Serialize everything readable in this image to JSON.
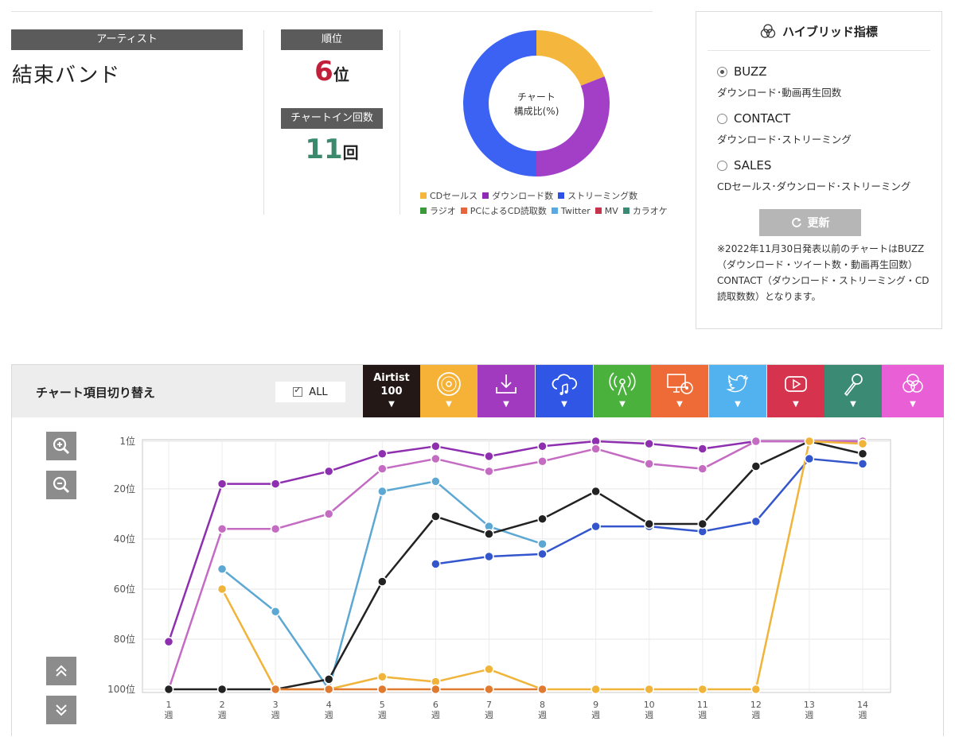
{
  "artist": {
    "label": "アーティスト",
    "name": "結束バンド"
  },
  "rank": {
    "label": "順位",
    "value": "6",
    "unit": "位",
    "value_color": "#c21f3a"
  },
  "chart_in": {
    "label": "チャートイン回数",
    "value": "11",
    "unit": "回",
    "value_color": "#3b8a6e"
  },
  "donut": {
    "center_line1": "チャート",
    "center_line2": "構成比(%)",
    "slices": [
      {
        "name": "CDセールス",
        "value": 19,
        "color": "#f4b63d"
      },
      {
        "name": "ダウンロード数",
        "value": 31,
        "color": "#a33fc6"
      },
      {
        "name": "ストリーミング数",
        "value": 50,
        "color": "#3b62f2"
      }
    ],
    "legend_row1": [
      {
        "name": "CDセールス",
        "color": "#f4b63d"
      },
      {
        "name": "ダウンロード数",
        "color": "#8e2ab5"
      },
      {
        "name": "ストリーミング数",
        "color": "#2e50e6"
      }
    ],
    "legend_row2": [
      {
        "name": "ラジオ",
        "color": "#3a9a3a"
      },
      {
        "name": "PCによるCD読取数",
        "color": "#e8643a"
      },
      {
        "name": "Twitter",
        "color": "#57a8e4"
      },
      {
        "name": "MV",
        "color": "#c8334c"
      },
      {
        "name": "カラオケ",
        "color": "#3a8a74"
      }
    ]
  },
  "hybrid": {
    "title": "ハイブリッド指標",
    "options": [
      {
        "label": "BUZZ",
        "desc": "ダウンロード･動画再生回数",
        "selected": true
      },
      {
        "label": "CONTACT",
        "desc": "ダウンロード･ストリーミング",
        "selected": false
      },
      {
        "label": "SALES",
        "desc": "CDセールス･ダウンロード･ストリーミング",
        "selected": false
      }
    ],
    "update_label": "更新",
    "note": "※2022年11月30日発表以前のチャートはBUZZ（ダウンロード・ツイート数・動画再生回数）CONTACT（ダウンロード・ストリーミング・CD読取数数）となります。"
  },
  "toggle": {
    "title": "チャート項目切り替え",
    "all_label": "ALL",
    "buttons": [
      {
        "name": "airtist-100",
        "label1": "Airtist",
        "label2": "100",
        "color": "#231815",
        "icon": "none"
      },
      {
        "name": "cd",
        "color": "#f5b236",
        "icon": "disc-icon"
      },
      {
        "name": "download",
        "color": "#a23ac0",
        "icon": "download-icon"
      },
      {
        "name": "streaming",
        "color": "#2f56e4",
        "icon": "cloud-music-icon"
      },
      {
        "name": "radio",
        "color": "#4ab23c",
        "icon": "radio-tower-icon"
      },
      {
        "name": "pc-cd",
        "color": "#ee6a36",
        "icon": "monitor-disc-icon"
      },
      {
        "name": "twitter",
        "color": "#52b2f0",
        "icon": "twitter-bird-icon"
      },
      {
        "name": "mv",
        "color": "#d6334e",
        "icon": "play-icon"
      },
      {
        "name": "karaoke",
        "color": "#3a8a74",
        "icon": "microphone-icon"
      },
      {
        "name": "hybrid",
        "color": "#e95fd6",
        "icon": "venn-icon"
      }
    ]
  },
  "chart_data": {
    "type": "line",
    "x": [
      "1",
      "2",
      "3",
      "4",
      "5",
      "6",
      "7",
      "8",
      "9",
      "10",
      "11",
      "12",
      "13",
      "14"
    ],
    "x_suffix": "週",
    "y_ticks": [
      "1位",
      "20位",
      "40位",
      "60位",
      "80位",
      "100位"
    ],
    "y_tick_values": [
      1,
      20,
      40,
      60,
      80,
      100
    ],
    "ylim": [
      1,
      100
    ],
    "y_reversed": true,
    "grid": true,
    "series": [
      {
        "color": "#8e2fb0",
        "values": [
          81,
          18,
          18,
          13,
          6,
          3,
          7,
          3,
          1,
          2,
          4,
          1,
          1,
          1
        ]
      },
      {
        "color": "#c46bc2",
        "values": [
          100,
          36,
          36,
          30,
          12,
          8,
          13,
          9,
          4,
          10,
          12,
          1,
          1,
          1
        ]
      },
      {
        "color": "#5da8d2",
        "values": [
          null,
          52,
          69,
          100,
          21,
          17,
          35,
          42,
          null,
          null,
          null,
          null,
          null,
          null
        ]
      },
      {
        "color": "#3456cc",
        "values": [
          null,
          null,
          null,
          null,
          null,
          50,
          47,
          46,
          35,
          35,
          37,
          33,
          8,
          10
        ]
      },
      {
        "color": "#222222",
        "values": [
          100,
          100,
          100,
          96,
          57,
          31,
          38,
          32,
          21,
          34,
          34,
          11,
          1,
          6
        ]
      },
      {
        "color": "#f0b43a",
        "values": [
          null,
          60,
          100,
          100,
          95,
          97,
          92,
          100,
          100,
          100,
          100,
          100,
          1,
          2
        ]
      },
      {
        "color": "#e07a30",
        "values": [
          null,
          null,
          100,
          100,
          100,
          100,
          100,
          100,
          null,
          null,
          null,
          null,
          null,
          null
        ]
      }
    ]
  }
}
